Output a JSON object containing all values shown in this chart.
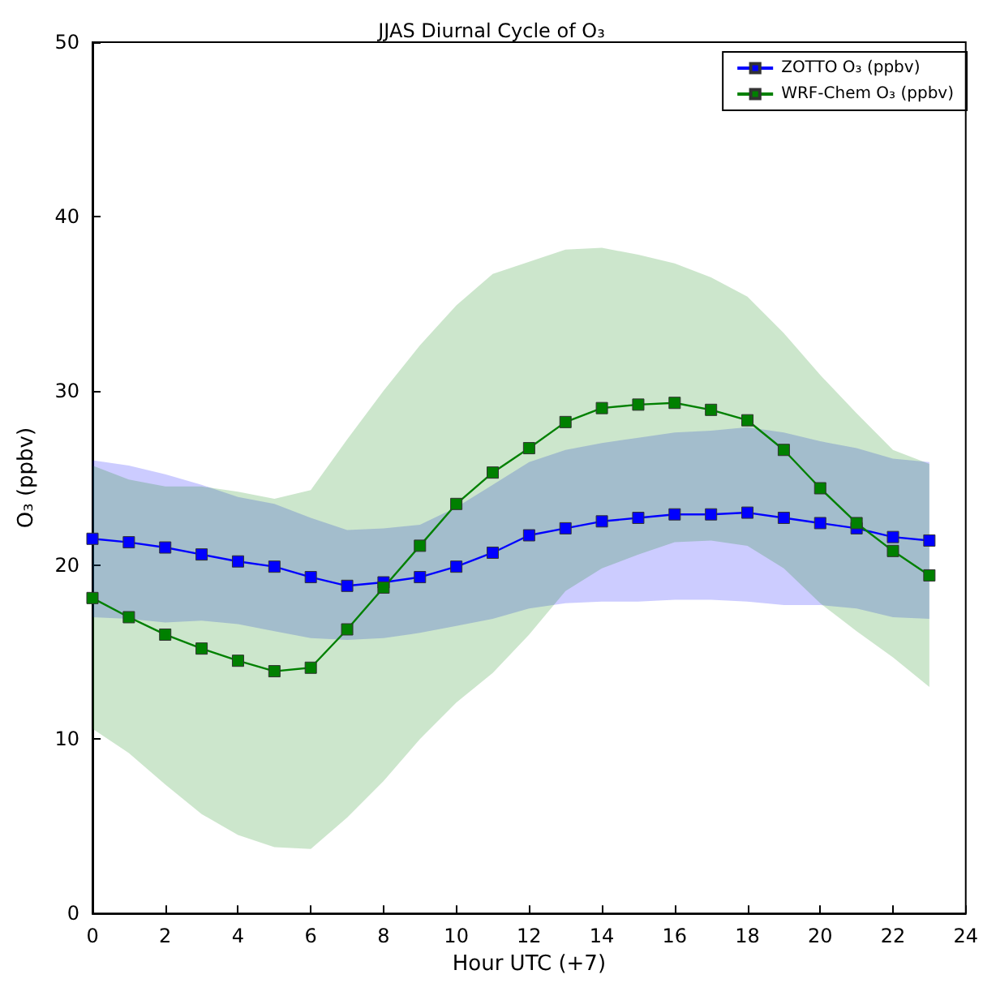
{
  "chart_data": {
    "type": "line",
    "title": "JJAS Diurnal Cycle of O₃",
    "xlabel": "Hour UTC (+7)",
    "ylabel": "O₃ (ppbv)",
    "x": [
      0,
      1,
      2,
      3,
      4,
      5,
      6,
      7,
      8,
      9,
      10,
      11,
      12,
      13,
      14,
      15,
      16,
      17,
      18,
      19,
      20,
      21,
      22,
      23
    ],
    "series": [
      {
        "name": "ZOTTO O₃ (ppbv)",
        "color": "#0000ff",
        "values": [
          21.5,
          21.3,
          21.0,
          20.6,
          20.2,
          19.9,
          19.3,
          18.8,
          19.0,
          19.3,
          19.9,
          20.7,
          21.7,
          22.1,
          22.5,
          22.7,
          22.9,
          22.9,
          23.0,
          22.7,
          22.4,
          22.1,
          21.6,
          21.4
        ],
        "lower": [
          17.0,
          16.9,
          16.7,
          16.8,
          16.6,
          16.2,
          15.8,
          15.7,
          15.8,
          16.1,
          16.5,
          16.9,
          17.5,
          17.8,
          17.9,
          17.9,
          18.0,
          18.0,
          17.9,
          17.7,
          17.7,
          17.5,
          17.0,
          16.9
        ],
        "upper": [
          26.0,
          25.7,
          25.2,
          24.6,
          23.9,
          23.5,
          22.7,
          22.0,
          22.1,
          22.3,
          23.3,
          24.6,
          25.9,
          26.6,
          27.0,
          27.3,
          27.6,
          27.7,
          27.9,
          27.6,
          27.1,
          26.7,
          26.1,
          25.9
        ]
      },
      {
        "name": "WRF-Chem O₃ (ppbv)",
        "color": "#008000",
        "values": [
          18.1,
          17.0,
          16.0,
          15.2,
          14.5,
          13.9,
          14.1,
          16.3,
          18.7,
          21.1,
          23.5,
          25.3,
          26.7,
          28.2,
          29.0,
          29.2,
          29.3,
          28.9,
          28.3,
          26.6,
          24.4,
          22.4,
          20.8,
          19.4
        ],
        "lower": [
          10.6,
          9.2,
          7.4,
          5.7,
          4.5,
          3.8,
          3.7,
          5.5,
          7.6,
          10.0,
          12.1,
          13.8,
          16.0,
          18.5,
          19.8,
          20.6,
          21.3,
          21.4,
          21.1,
          19.8,
          17.8,
          16.2,
          14.7,
          13.0
        ],
        "upper": [
          25.7,
          24.9,
          24.5,
          24.5,
          24.2,
          23.8,
          24.3,
          27.2,
          30.0,
          32.6,
          34.9,
          36.7,
          37.4,
          38.1,
          38.2,
          37.8,
          37.3,
          36.5,
          35.4,
          33.3,
          30.9,
          28.7,
          26.6,
          25.8
        ]
      }
    ],
    "xlim": [
      0,
      24
    ],
    "xticks": [
      0,
      2,
      4,
      6,
      8,
      10,
      12,
      14,
      16,
      18,
      20,
      22,
      24
    ],
    "ylim": [
      0,
      50
    ],
    "yticks": [
      0,
      10,
      20,
      30,
      40,
      50
    ],
    "grid": false,
    "legend": "top right",
    "marker": "square",
    "line_style": "solid"
  }
}
